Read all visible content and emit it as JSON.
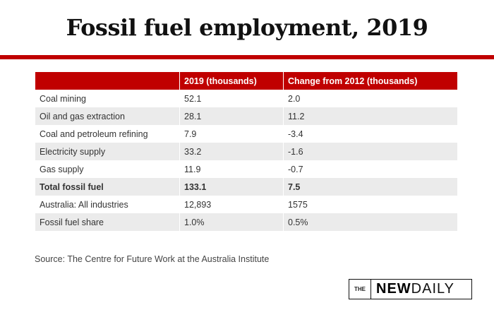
{
  "title": "Fossil fuel employment, 2019",
  "table": {
    "headers": [
      "",
      "2019 (thousands)",
      "Change from 2012 (thousands)"
    ],
    "rows": [
      [
        "Coal mining",
        "52.1",
        "2.0"
      ],
      [
        "Oil and gas extraction",
        "28.1",
        "11.2"
      ],
      [
        "Coal and petroleum refining",
        "7.9",
        "-3.4"
      ],
      [
        "Electricity supply",
        "33.2",
        "-1.6"
      ],
      [
        "Gas supply",
        "11.9",
        "-0.7"
      ],
      [
        "Total fossil fuel",
        "133.1",
        "7.5"
      ],
      [
        "Australia: All industries",
        "12,893",
        "1575"
      ],
      [
        "Fossil fuel share",
        "1.0%",
        "0.5%"
      ]
    ]
  },
  "source": "Source: The Centre for Future Work at the Australia Institute",
  "logo": {
    "the": "THE",
    "new": "NEW",
    "daily": "DAILY"
  },
  "colors": {
    "accent": "#c00000",
    "row_alt": "#ebebeb"
  }
}
